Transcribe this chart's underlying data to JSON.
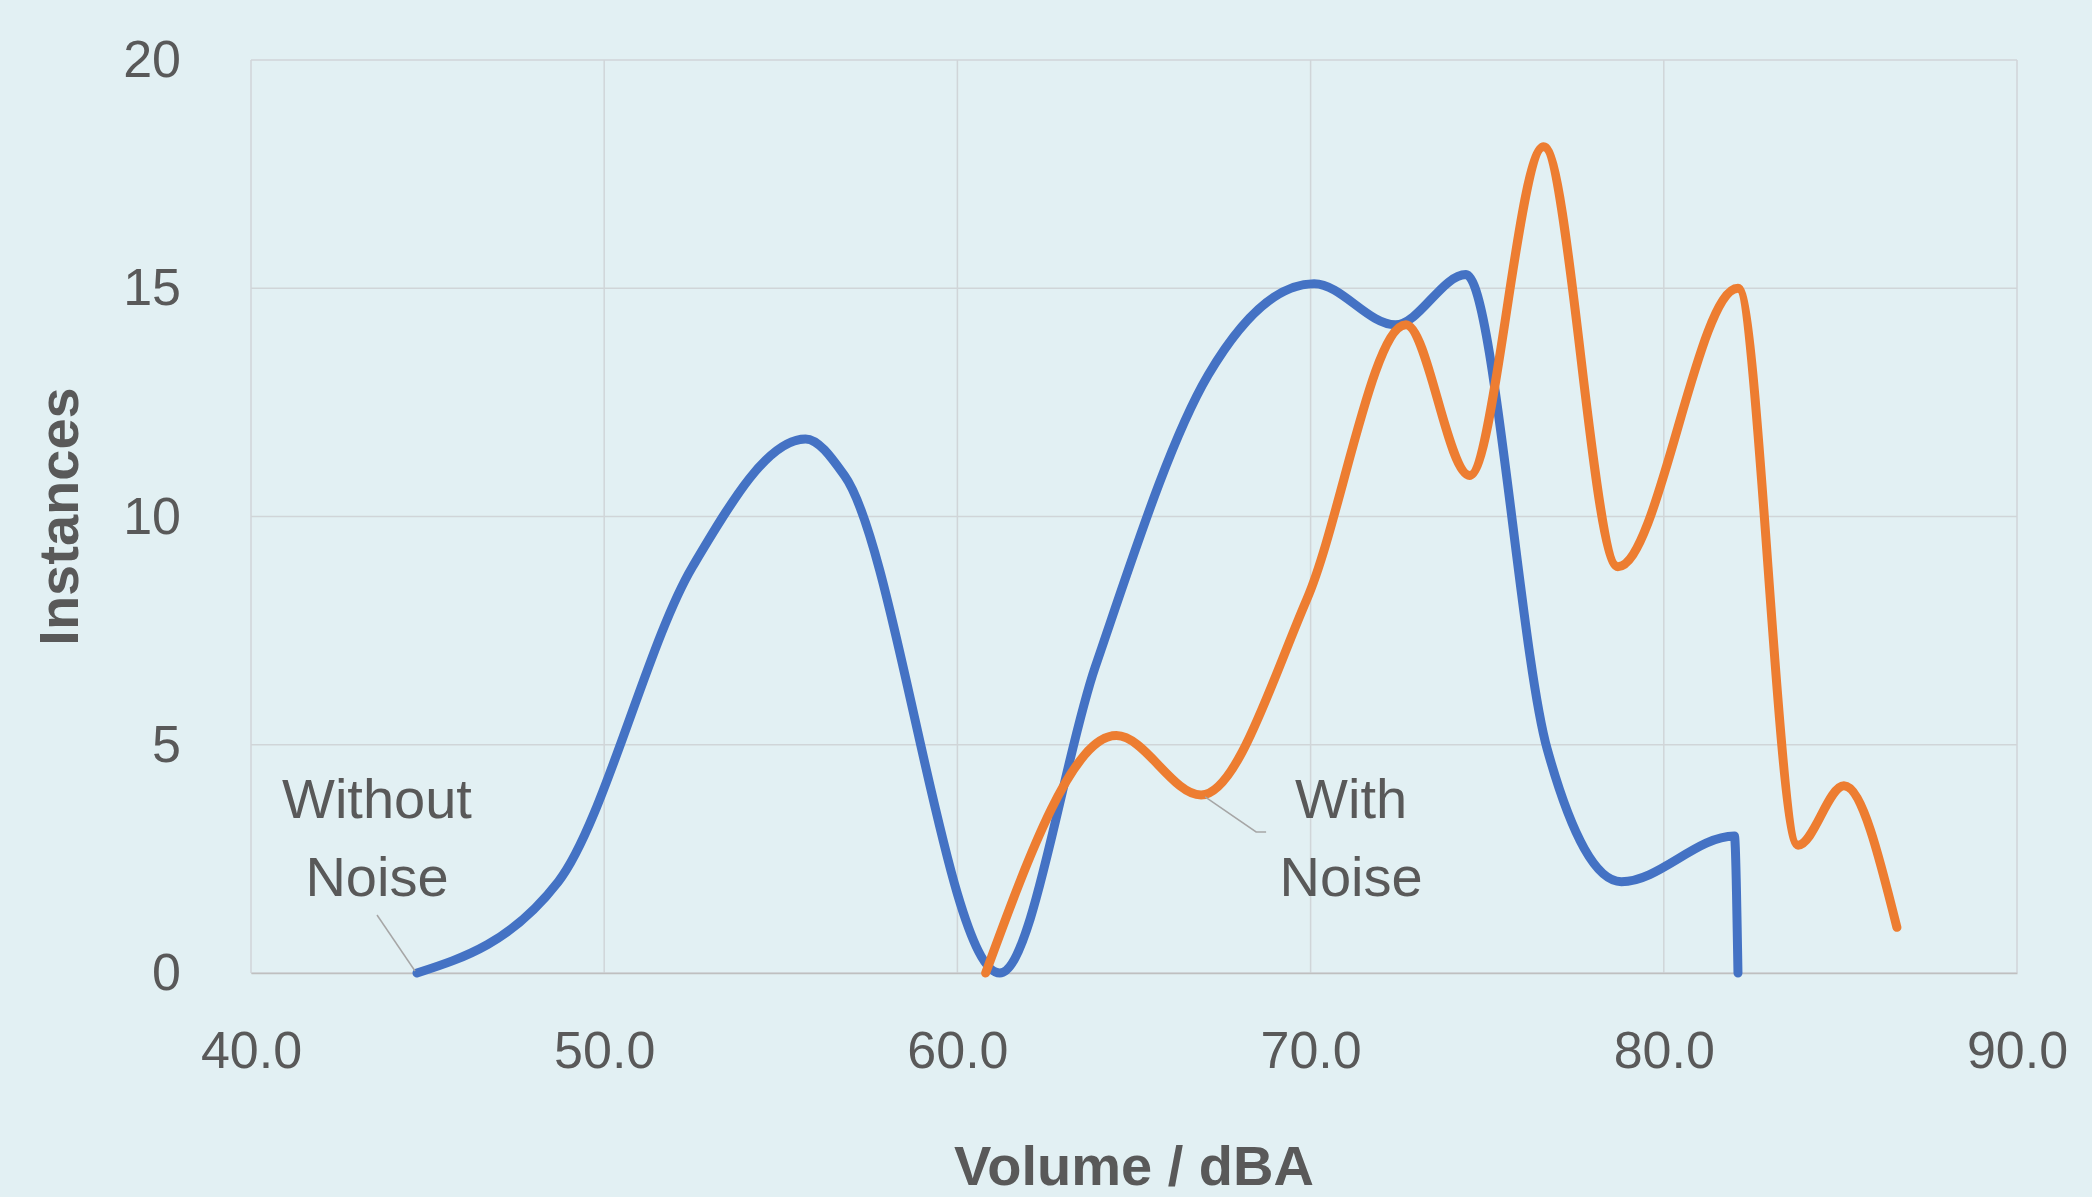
{
  "chart_data": {
    "type": "line",
    "xlabel": "Volume / dBA",
    "ylabel": "Instances",
    "xlim": [
      40,
      90
    ],
    "xticks": [
      {
        "value": 40,
        "label": "40.0"
      },
      {
        "value": 50,
        "label": "50.0"
      },
      {
        "value": 60,
        "label": "60.0"
      },
      {
        "value": 70,
        "label": "70.0"
      },
      {
        "value": 80,
        "label": "80.0"
      },
      {
        "value": 90,
        "label": "90.0"
      }
    ],
    "ylim": [
      0,
      20
    ],
    "yticks": [
      0,
      5,
      10,
      15,
      20
    ],
    "grid": true,
    "marker": "none",
    "line_style": "solid",
    "series": [
      {
        "color": "#4472c4",
        "x": [
          44.7,
          48.7,
          52.5,
          55.7,
          56.8,
          61.2,
          63.9,
          67.1,
          70.1,
          72.4,
          74.4,
          76.7,
          78.8,
          82.0,
          82.1
        ],
        "values": [
          0,
          2,
          8.9,
          11.7,
          10.9,
          0,
          6.7,
          13.1,
          15.1,
          14.2,
          15.3,
          4.9,
          2,
          3,
          0
        ]
      },
      {
        "color": "#ed7d31",
        "x": [
          60.8,
          64.5,
          66.9,
          69.9,
          72.7,
          74.5,
          76.6,
          78.7,
          82.1,
          83.8,
          85.1,
          86.6
        ],
        "values": [
          0,
          5.2,
          3.9,
          8.2,
          14.2,
          10.9,
          18.1,
          8.9,
          15,
          2.8,
          4.1,
          1
        ]
      }
    ],
    "annotations": [
      {
        "text": "Without Noise",
        "x": 44.7,
        "y": 0
      },
      {
        "text": "With Noise",
        "x": 66.9,
        "y": 3.9
      }
    ]
  }
}
